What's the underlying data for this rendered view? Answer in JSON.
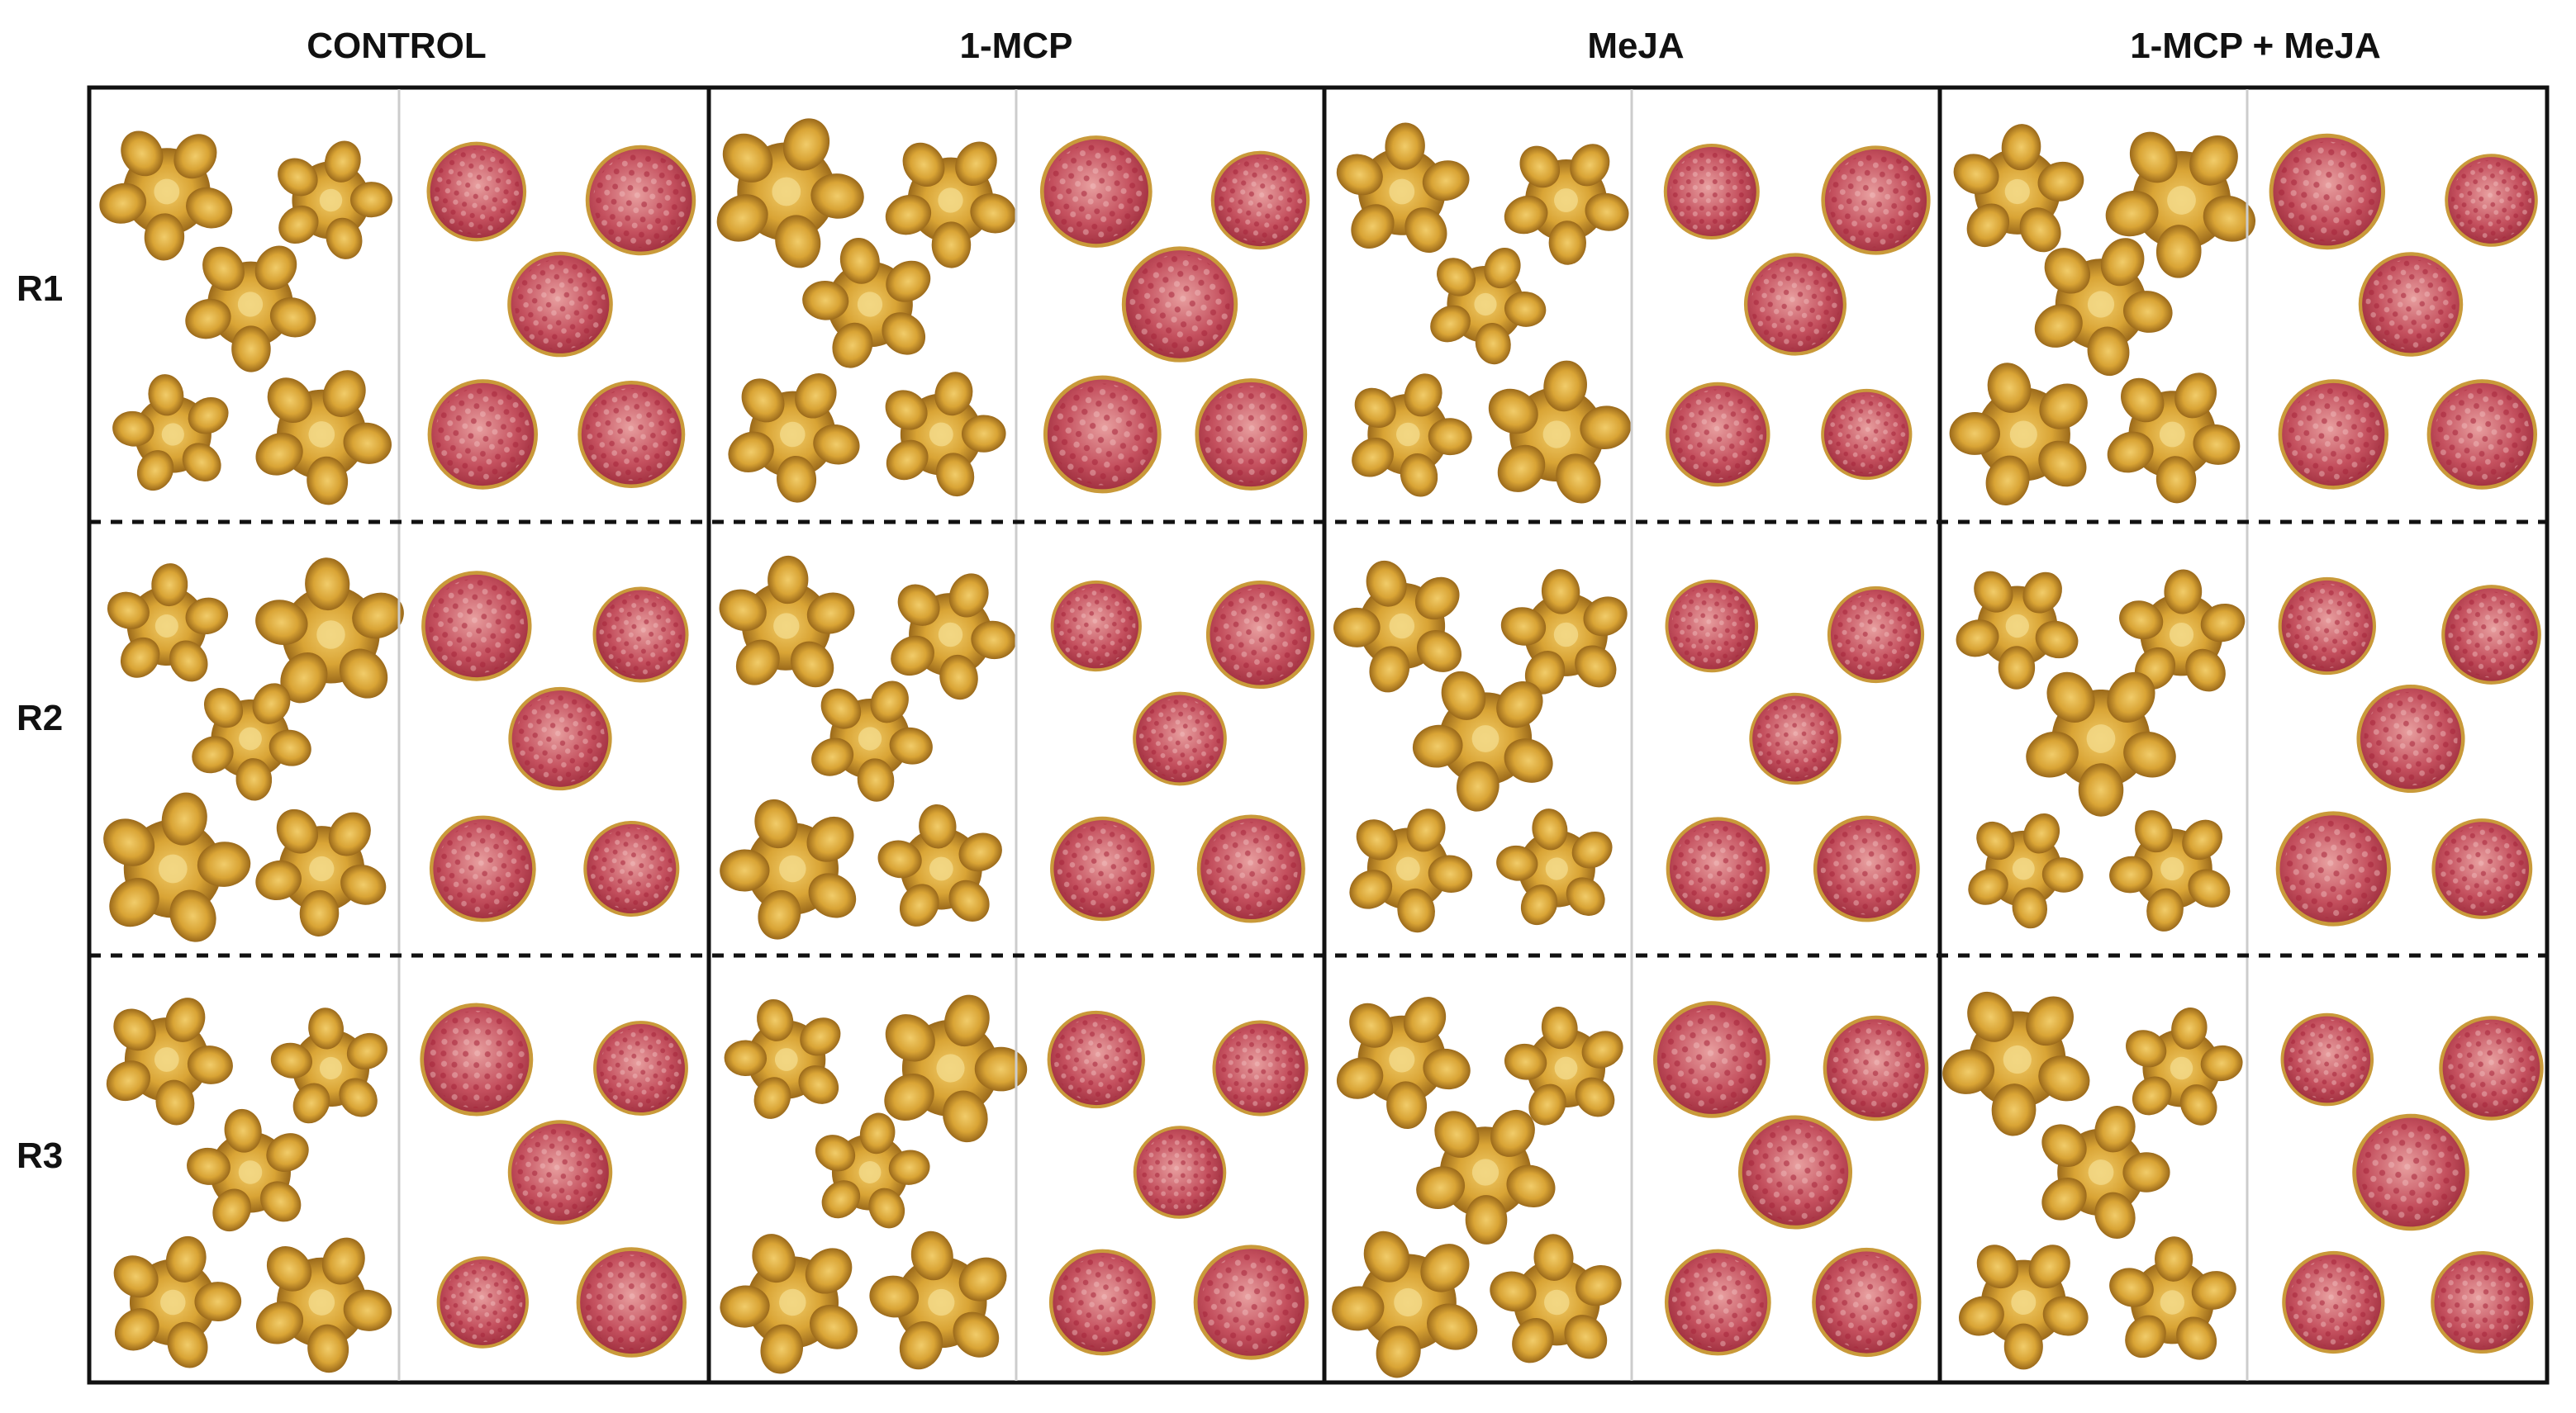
{
  "columns": [
    {
      "label": "CONTROL"
    },
    {
      "label": "1-MCP"
    },
    {
      "label": "MeJA"
    },
    {
      "label": "1-MCP +  MeJA"
    }
  ],
  "rows": [
    {
      "label": "R1"
    },
    {
      "label": "R2"
    },
    {
      "label": "R3"
    }
  ],
  "colors": {
    "border": "#111111",
    "divider": "#cccccc",
    "dash": "#111111",
    "peel_light": "#e6b43c",
    "peel_dark": "#8a5a14",
    "aril_light": "#e8a0a0",
    "aril_dark": "#a5253a"
  }
}
